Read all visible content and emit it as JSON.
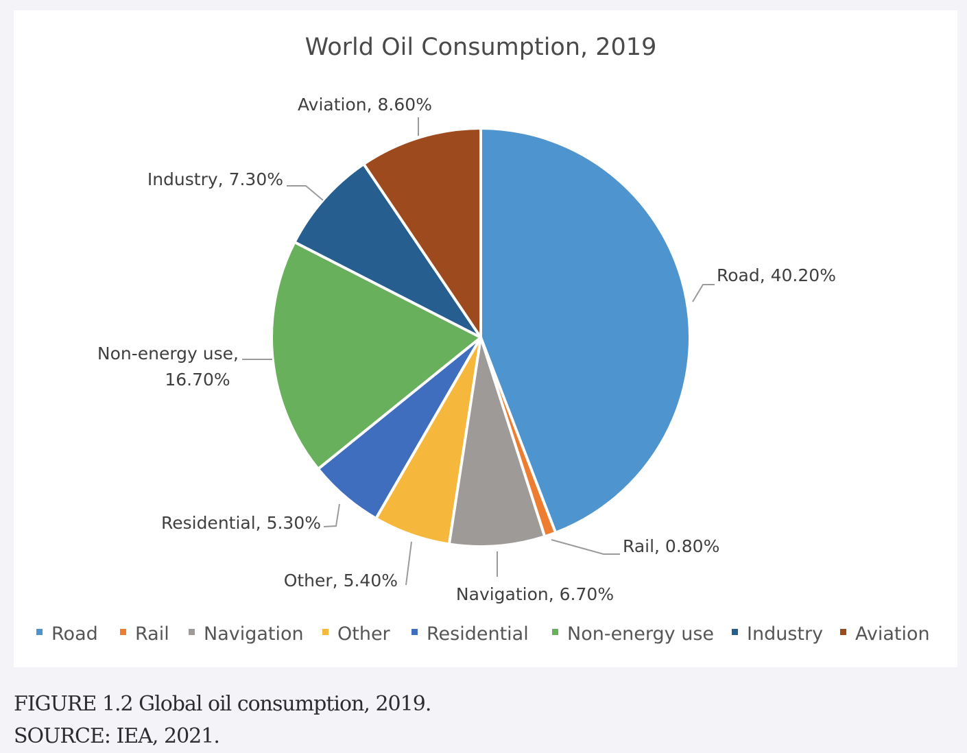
{
  "chart_data": {
    "type": "pie",
    "title": "World Oil Consumption, 2019",
    "unit": "%",
    "start_angle_deg": 0,
    "direction": "clockwise",
    "slices": [
      {
        "name": "Road",
        "value": 40.2,
        "label": "Road, 40.20%",
        "color": "#4e95cf"
      },
      {
        "name": "Rail",
        "value": 0.8,
        "label": "Rail, 0.80%",
        "color": "#ec7d31"
      },
      {
        "name": "Navigation",
        "value": 6.7,
        "label": "Navigation, 6.70%",
        "color": "#9d9a97"
      },
      {
        "name": "Other",
        "value": 5.4,
        "label": "Other, 5.40%",
        "color": "#f5b83d"
      },
      {
        "name": "Residential",
        "value": 5.3,
        "label": "Residential, 5.30%",
        "color": "#3f6ebf"
      },
      {
        "name": "Non-energy use",
        "value": 16.7,
        "label_lines": [
          "Non-energy use,",
          "16.70%"
        ],
        "color": "#68b05b"
      },
      {
        "name": "Industry",
        "value": 7.3,
        "label": "Industry, 7.30%",
        "color": "#255e8f"
      },
      {
        "name": "Aviation",
        "value": 8.6,
        "label": "Aviation, 8.60%",
        "color": "#9c4a1e"
      }
    ],
    "legend": {
      "position": "bottom",
      "entries": [
        "Road",
        "Rail",
        "Navigation",
        "Other",
        "Residential",
        "Non-energy use",
        "Industry",
        "Aviation"
      ]
    }
  },
  "caption": {
    "figure": "FIGURE 1.2 Global oil consumption, 2019.",
    "source": "SOURCE: IEA, 2021."
  }
}
